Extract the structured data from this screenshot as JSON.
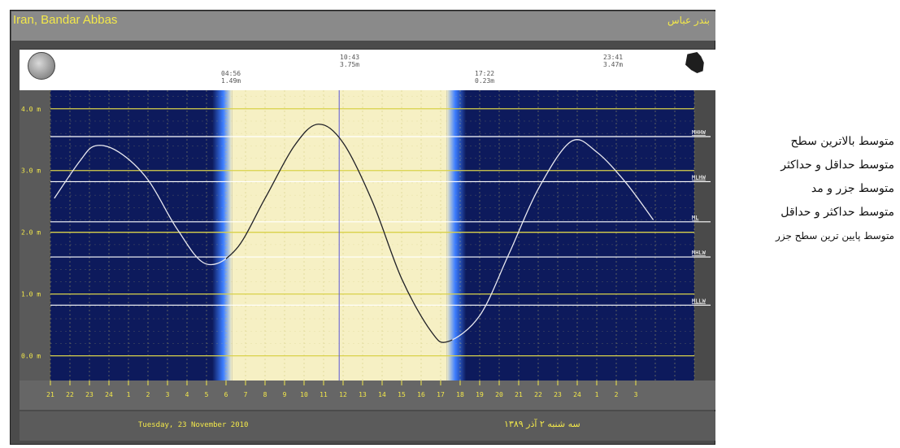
{
  "header": {
    "location_en": "Iran, Bandar Abbas",
    "location_fa": "بندر عباس"
  },
  "tide_events": [
    {
      "time": "04:56",
      "height": "1.49m"
    },
    {
      "time": "10:43",
      "height": "3.75m"
    },
    {
      "time": "17:22",
      "height": "0.23m"
    },
    {
      "time": "23:41",
      "height": "3.47m"
    }
  ],
  "footer": {
    "date_en": "Tuesday, 23 November 2010",
    "date_fa": "سه شنبه ۲ آذر ۱۳۸۹"
  },
  "legend": [
    "متوسط بالاترین سطح",
    "متوسط حداقل و حداکثر",
    "متوسط جزر و مد",
    "متوسط حداکثر و حداقل",
    "متوسط پایین ترین سطح جزر"
  ],
  "colors": {
    "night": "#0d1a5c",
    "day": "#f6f0c4",
    "twilight": "#3b7cff",
    "level_line": "#d9d24a",
    "ref_line": "#ffffff",
    "label": "#f3e84a"
  },
  "chart_data": {
    "type": "line",
    "xlim": [
      -3,
      30
    ],
    "ylim": [
      -0.4,
      4.3
    ],
    "y_ticks": [
      0,
      1,
      2,
      3,
      4
    ],
    "y_tick_labels": [
      "0.0 m",
      "1.0 m",
      "2.0 m",
      "3.0 m",
      "4.0 m"
    ],
    "x_hour_labels": [
      "21",
      "22",
      "23",
      "24",
      "1",
      "2",
      "3",
      "4",
      "5",
      "6",
      "7",
      "8",
      "9",
      "10",
      "11",
      "12",
      "13",
      "14",
      "15",
      "16",
      "17",
      "18",
      "19",
      "20",
      "21",
      "22",
      "23",
      "24",
      "1",
      "2",
      "3"
    ],
    "reference_levels": [
      {
        "name": "MHHW",
        "value": 3.55
      },
      {
        "name": "MLHW",
        "value": 2.82
      },
      {
        "name": "ML",
        "value": 2.17
      },
      {
        "name": "MHLW",
        "value": 1.6
      },
      {
        "name": "MLLW",
        "value": 0.82
      }
    ],
    "grid": true,
    "sunrise": 6.3,
    "sunset": 17.3,
    "twilight_hours": 1.0,
    "current_time": 11.8,
    "series": [
      {
        "x": [
          -2.8,
          -1.5,
          -0.7,
          0.5,
          2,
          3.5,
          4.96,
          6.5,
          8,
          9.5,
          10.72,
          12,
          13.5,
          15,
          16.5,
          17.37,
          19,
          20.5,
          22,
          23.68,
          25,
          26.5,
          27.9
        ],
        "y": [
          2.55,
          3.15,
          3.4,
          3.3,
          2.85,
          2.05,
          1.49,
          1.72,
          2.55,
          3.4,
          3.75,
          3.45,
          2.5,
          1.25,
          0.4,
          0.23,
          0.65,
          1.65,
          2.7,
          3.47,
          3.3,
          2.8,
          2.2
        ]
      }
    ]
  }
}
